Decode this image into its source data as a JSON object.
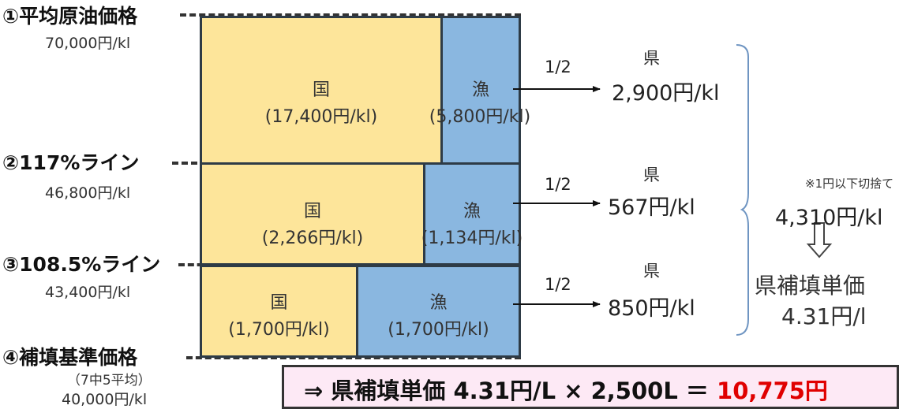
{
  "levels": [
    {
      "title": "①平均原油価格",
      "sub": "70,000円/kl"
    },
    {
      "title": "②117%ライン",
      "sub": "46,800円/kl"
    },
    {
      "title": "③108.5%ライン",
      "sub": "43,400円/kl"
    },
    {
      "title": "④補填基準価格",
      "sub_lines": [
        "（7中5平均）",
        "40,000円/kl"
      ]
    }
  ],
  "tiers": [
    {
      "koku_label": "国",
      "koku_value": "(17,400円/kl)",
      "gyo_label": "漁",
      "gyo_value": "(5,800円/kl)",
      "fraction": "1/2",
      "ken_label": "県",
      "ken_amount": "2,900円/kl"
    },
    {
      "koku_label": "国",
      "koku_value": "(2,266円/kl)",
      "gyo_label": "漁",
      "gyo_value": "(1,134円/kl)",
      "fraction": "1/2",
      "ken_label": "県",
      "ken_amount": "567円/kl"
    },
    {
      "koku_label": "国",
      "koku_value": "(1,700円/kl)",
      "gyo_label": "漁",
      "gyo_value": "(1,700円/kl)",
      "fraction": "1/2",
      "ken_label": "県",
      "ken_amount": "850円/kl"
    }
  ],
  "summary": {
    "note": "※1円以下切捨て",
    "total": "4,310円/kl",
    "unit_title": "県補填単価",
    "unit_value": "4.31円/l"
  },
  "formula": {
    "prefix": "⇒ 県補填単価 4.31円/L × 2,500L ＝ ",
    "result": "10,775円"
  },
  "colors": {
    "koku_fill": "#fde59a",
    "gyo_fill": "#8ab7e0",
    "border": "#2e3b46",
    "result_red": "#e00000",
    "formula_bg": "#fde9f5"
  },
  "icons": {
    "down_arrow": "hollow-down-arrow-icon",
    "brace": "right-brace-icon"
  }
}
